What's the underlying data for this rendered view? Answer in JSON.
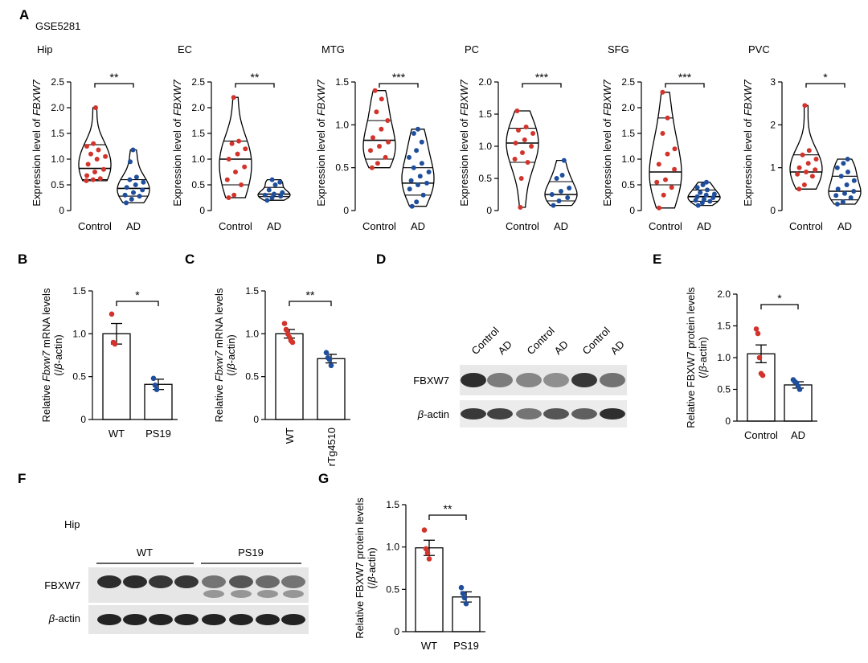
{
  "colors": {
    "control": "#d2342c",
    "ad": "#1f4e9c",
    "axis": "#000000"
  },
  "panel_labels": [
    "A",
    "B",
    "C",
    "D",
    "E",
    "F",
    "G"
  ],
  "dataset_label": "GSE5281",
  "chart_data": [
    {
      "id": "A-Hip",
      "type": "violin",
      "title": "Hip",
      "ylabel_prefix": "Expression level of ",
      "ylabel_gene": "FBXW7",
      "categories": [
        "Control",
        "AD"
      ],
      "ylim": [
        0,
        2.5
      ],
      "ticks": [
        "0",
        "0.5",
        "1.0",
        "1.5",
        "2.0",
        "2.5"
      ],
      "sig": "**",
      "groups": [
        {
          "name": "Control",
          "points": [
            0.58,
            0.6,
            0.62,
            0.68,
            0.75,
            0.8,
            0.9,
            1.0,
            1.05,
            1.1,
            1.18,
            1.25,
            1.3,
            2.0
          ],
          "q1": 0.6,
          "median": 0.82,
          "q3": 1.28
        },
        {
          "name": "AD",
          "points": [
            0.15,
            0.22,
            0.28,
            0.3,
            0.35,
            0.4,
            0.45,
            0.5,
            0.55,
            0.6,
            0.65,
            0.95,
            1.18
          ],
          "q1": 0.28,
          "median": 0.43,
          "q3": 0.6
        }
      ]
    },
    {
      "id": "A-EC",
      "type": "violin",
      "title": "EC",
      "ylabel_prefix": "Expression level of ",
      "ylabel_gene": "FBXW7",
      "categories": [
        "Control",
        "AD"
      ],
      "ylim": [
        0,
        2.5
      ],
      "ticks": [
        "0",
        "0.5",
        "1.0",
        "1.5",
        "2.0",
        "2.5"
      ],
      "sig": "**",
      "groups": [
        {
          "name": "Control",
          "points": [
            0.25,
            0.3,
            0.5,
            0.6,
            0.75,
            0.85,
            1.0,
            1.1,
            1.2,
            1.3,
            1.35,
            2.2
          ],
          "q1": 0.5,
          "median": 1.0,
          "q3": 1.35
        },
        {
          "name": "AD",
          "points": [
            0.2,
            0.25,
            0.28,
            0.3,
            0.32,
            0.35,
            0.4,
            0.5,
            0.55,
            0.6
          ],
          "q1": 0.27,
          "median": 0.32,
          "q3": 0.45
        }
      ]
    },
    {
      "id": "A-MTG",
      "type": "violin",
      "title": "MTG",
      "ylabel_prefix": "Expression level of ",
      "ylabel_gene": "FBXW7",
      "categories": [
        "Control",
        "AD"
      ],
      "ylim": [
        0,
        1.5
      ],
      "ticks": [
        "0",
        "0.5",
        "1.0",
        "1.5"
      ],
      "sig": "***",
      "groups": [
        {
          "name": "Control",
          "points": [
            0.5,
            0.55,
            0.62,
            0.7,
            0.75,
            0.8,
            0.85,
            0.95,
            1.05,
            1.15,
            1.3,
            1.4
          ],
          "q1": 0.6,
          "median": 0.82,
          "q3": 1.05
        },
        {
          "name": "AD",
          "points": [
            0.05,
            0.1,
            0.18,
            0.25,
            0.3,
            0.32,
            0.35,
            0.4,
            0.45,
            0.5,
            0.55,
            0.62,
            0.7,
            0.8,
            0.9,
            0.95
          ],
          "q1": 0.18,
          "median": 0.32,
          "q3": 0.5
        }
      ]
    },
    {
      "id": "A-PC",
      "type": "violin",
      "title": "PC",
      "ylabel_prefix": "Expression level of ",
      "ylabel_gene": "FBXW7",
      "categories": [
        "Control",
        "AD"
      ],
      "ylim": [
        0,
        2.0
      ],
      "ticks": [
        "0",
        "0.5",
        "1.0",
        "1.5",
        "2.0"
      ],
      "sig": "***",
      "groups": [
        {
          "name": "Control",
          "points": [
            0.05,
            0.5,
            0.75,
            0.8,
            0.9,
            1.0,
            1.05,
            1.1,
            1.2,
            1.25,
            1.3,
            1.55
          ],
          "q1": 0.75,
          "median": 1.05,
          "q3": 1.28
        },
        {
          "name": "AD",
          "points": [
            0.08,
            0.15,
            0.2,
            0.25,
            0.3,
            0.35,
            0.5,
            0.55,
            0.78
          ],
          "q1": 0.15,
          "median": 0.25,
          "q3": 0.45
        }
      ]
    },
    {
      "id": "A-SFG",
      "type": "violin",
      "title": "SFG",
      "ylabel_prefix": "Expression level of ",
      "ylabel_gene": "FBXW7",
      "categories": [
        "Control",
        "AD"
      ],
      "ylim": [
        0,
        2.5
      ],
      "ticks": [
        "0",
        "0.5",
        "1.0",
        "1.5",
        "2.0",
        "2.5"
      ],
      "sig": "***",
      "groups": [
        {
          "name": "Control",
          "points": [
            0.05,
            0.3,
            0.45,
            0.55,
            0.6,
            0.8,
            0.9,
            1.1,
            1.2,
            1.5,
            1.8,
            2.3
          ],
          "q1": 0.5,
          "median": 0.75,
          "q3": 1.8
        },
        {
          "name": "AD",
          "points": [
            0.1,
            0.15,
            0.18,
            0.2,
            0.22,
            0.25,
            0.27,
            0.3,
            0.32,
            0.35,
            0.4,
            0.45,
            0.5,
            0.55
          ],
          "q1": 0.18,
          "median": 0.27,
          "q3": 0.4
        }
      ]
    },
    {
      "id": "A-PVC",
      "type": "violin",
      "title": "PVC",
      "ylabel_prefix": "Expression level of ",
      "ylabel_gene": "FBXW7",
      "categories": [
        "Control",
        "AD"
      ],
      "ylim": [
        0,
        3
      ],
      "ticks": [
        "0",
        "1",
        "2",
        "3"
      ],
      "sig": "*",
      "groups": [
        {
          "name": "Control",
          "points": [
            0.5,
            0.6,
            0.8,
            0.85,
            0.9,
            0.95,
            1.0,
            1.1,
            1.2,
            1.3,
            1.4,
            2.45
          ],
          "q1": 0.5,
          "median": 0.9,
          "q3": 1.3
        },
        {
          "name": "AD",
          "points": [
            0.15,
            0.2,
            0.3,
            0.35,
            0.4,
            0.45,
            0.5,
            0.6,
            0.7,
            0.8,
            0.9,
            1.0,
            1.1,
            1.2
          ],
          "q1": 0.25,
          "median": 0.45,
          "q3": 0.8
        }
      ]
    },
    {
      "id": "B",
      "type": "bar",
      "ylabel_line1_prefix": "Relative ",
      "ylabel_line1_gene": "Fbxw7",
      "ylabel_line1_suffix": " mRNA levels",
      "ylabel_line2_prefix": "(/",
      "ylabel_line2_ital": "β",
      "ylabel_line2_suffix": "-actin)",
      "categories": [
        "WT",
        "PS19"
      ],
      "values": [
        1.0,
        0.41
      ],
      "errors": [
        0.12,
        0.06
      ],
      "ylim": [
        0,
        1.5
      ],
      "ticks": [
        "0",
        "0.5",
        "1.0",
        "1.5"
      ],
      "sig": "*",
      "points": [
        [
          1.23,
          0.9,
          0.88
        ],
        [
          0.48,
          0.4,
          0.35
        ]
      ]
    },
    {
      "id": "C",
      "type": "bar",
      "ylabel_line1_prefix": "Relative ",
      "ylabel_line1_gene": "Fbxw7",
      "ylabel_line1_suffix": " mRNA levels",
      "ylabel_line2_prefix": "(/",
      "ylabel_line2_ital": "β",
      "ylabel_line2_suffix": "-actin)",
      "categories": [
        "WT",
        "rTg4510"
      ],
      "values": [
        1.0,
        0.71
      ],
      "errors": [
        0.05,
        0.05
      ],
      "ylim": [
        0,
        1.5
      ],
      "ticks": [
        "0",
        "0.5",
        "1.0",
        "1.5"
      ],
      "sig": "**",
      "points": [
        [
          1.12,
          1.05,
          1.0,
          0.96,
          0.92,
          0.9
        ],
        [
          0.78,
          0.72,
          0.7,
          0.63
        ]
      ]
    },
    {
      "id": "E",
      "type": "bar",
      "ylabel_line1_prefix": "Relative FBXW7 protein levels",
      "ylabel_line1_gene": "",
      "ylabel_line1_suffix": "",
      "ylabel_line2_prefix": "(/",
      "ylabel_line2_ital": "β",
      "ylabel_line2_suffix": "-actin)",
      "categories": [
        "Control",
        "AD"
      ],
      "values": [
        1.06,
        0.57
      ],
      "errors": [
        0.14,
        0.05
      ],
      "ylim": [
        0,
        2.0
      ],
      "ticks": [
        "0",
        "0.5",
        "1.0",
        "1.5",
        "2.0"
      ],
      "sig": "*",
      "points": [
        [
          1.45,
          1.38,
          1.0,
          0.75,
          0.72
        ],
        [
          0.65,
          0.62,
          0.6,
          0.55,
          0.5
        ]
      ]
    },
    {
      "id": "G",
      "type": "bar",
      "ylabel_line1_prefix": "Relative FBXW7 protein levels",
      "ylabel_line1_gene": "",
      "ylabel_line1_suffix": "",
      "ylabel_line2_prefix": "(/",
      "ylabel_line2_ital": "β",
      "ylabel_line2_suffix": "-actin)",
      "categories": [
        "WT",
        "PS19"
      ],
      "values": [
        0.99,
        0.41
      ],
      "errors": [
        0.09,
        0.06
      ],
      "ylim": [
        0,
        1.5
      ],
      "ticks": [
        "0",
        "0.5",
        "1.0",
        "1.5"
      ],
      "sig": "**",
      "points": [
        [
          1.2,
          0.98,
          0.93,
          0.86
        ],
        [
          0.52,
          0.45,
          0.4,
          0.33
        ]
      ]
    }
  ],
  "blot_D": {
    "columns": [
      "Control",
      "AD",
      "Control",
      "AD",
      "Control",
      "AD"
    ],
    "rows": [
      "FBXW7",
      "β-actin"
    ],
    "row1_prefix": "",
    "row2_ital": "β",
    "row2_suffix": "-actin"
  },
  "blot_F": {
    "region": "Hip",
    "groups": [
      "WT",
      "PS19"
    ],
    "rows": [
      "FBXW7",
      "β-actin"
    ],
    "row2_ital": "β",
    "row2_suffix": "-actin"
  }
}
